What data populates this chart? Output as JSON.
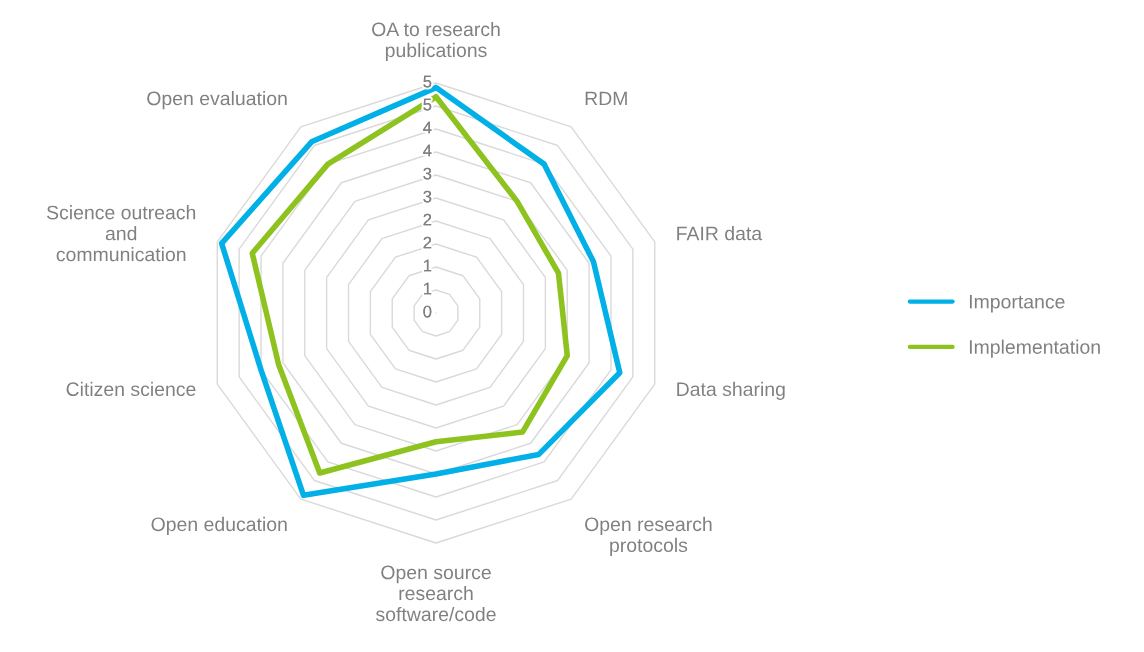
{
  "chart_data": {
    "type": "radar",
    "categories": [
      "OA to research\npublications",
      "RDM",
      "FAIR data",
      "Data sharing",
      "Open research\nprotocols",
      "Open source\nresearch\nsoftware/code",
      "Open education",
      "Citizen science",
      "Science outreach\nand\ncommunication",
      "Open evaluation"
    ],
    "series": [
      {
        "name": "Importance",
        "color": "#00b0e6",
        "values": [
          4.9,
          4.0,
          3.6,
          4.2,
          3.8,
          3.5,
          4.9,
          4.0,
          4.9,
          4.6
        ]
      },
      {
        "name": "Implementation",
        "color": "#8dc21f",
        "values": [
          4.7,
          3.0,
          2.8,
          3.0,
          3.2,
          2.8,
          4.3,
          3.6,
          4.2,
          4.0
        ]
      }
    ],
    "ylim": [
      0,
      5
    ],
    "yticks": [
      0,
      {
        "value": 0.5,
        "label": "1"
      },
      1,
      {
        "value": 1.5,
        "label": "2"
      },
      2,
      {
        "value": 2.5,
        "label": "3"
      },
      3,
      {
        "value": 3.5,
        "label": "4"
      },
      4,
      {
        "value": 4.5,
        "label": "5"
      },
      5
    ],
    "grid": true,
    "legend": "right"
  }
}
